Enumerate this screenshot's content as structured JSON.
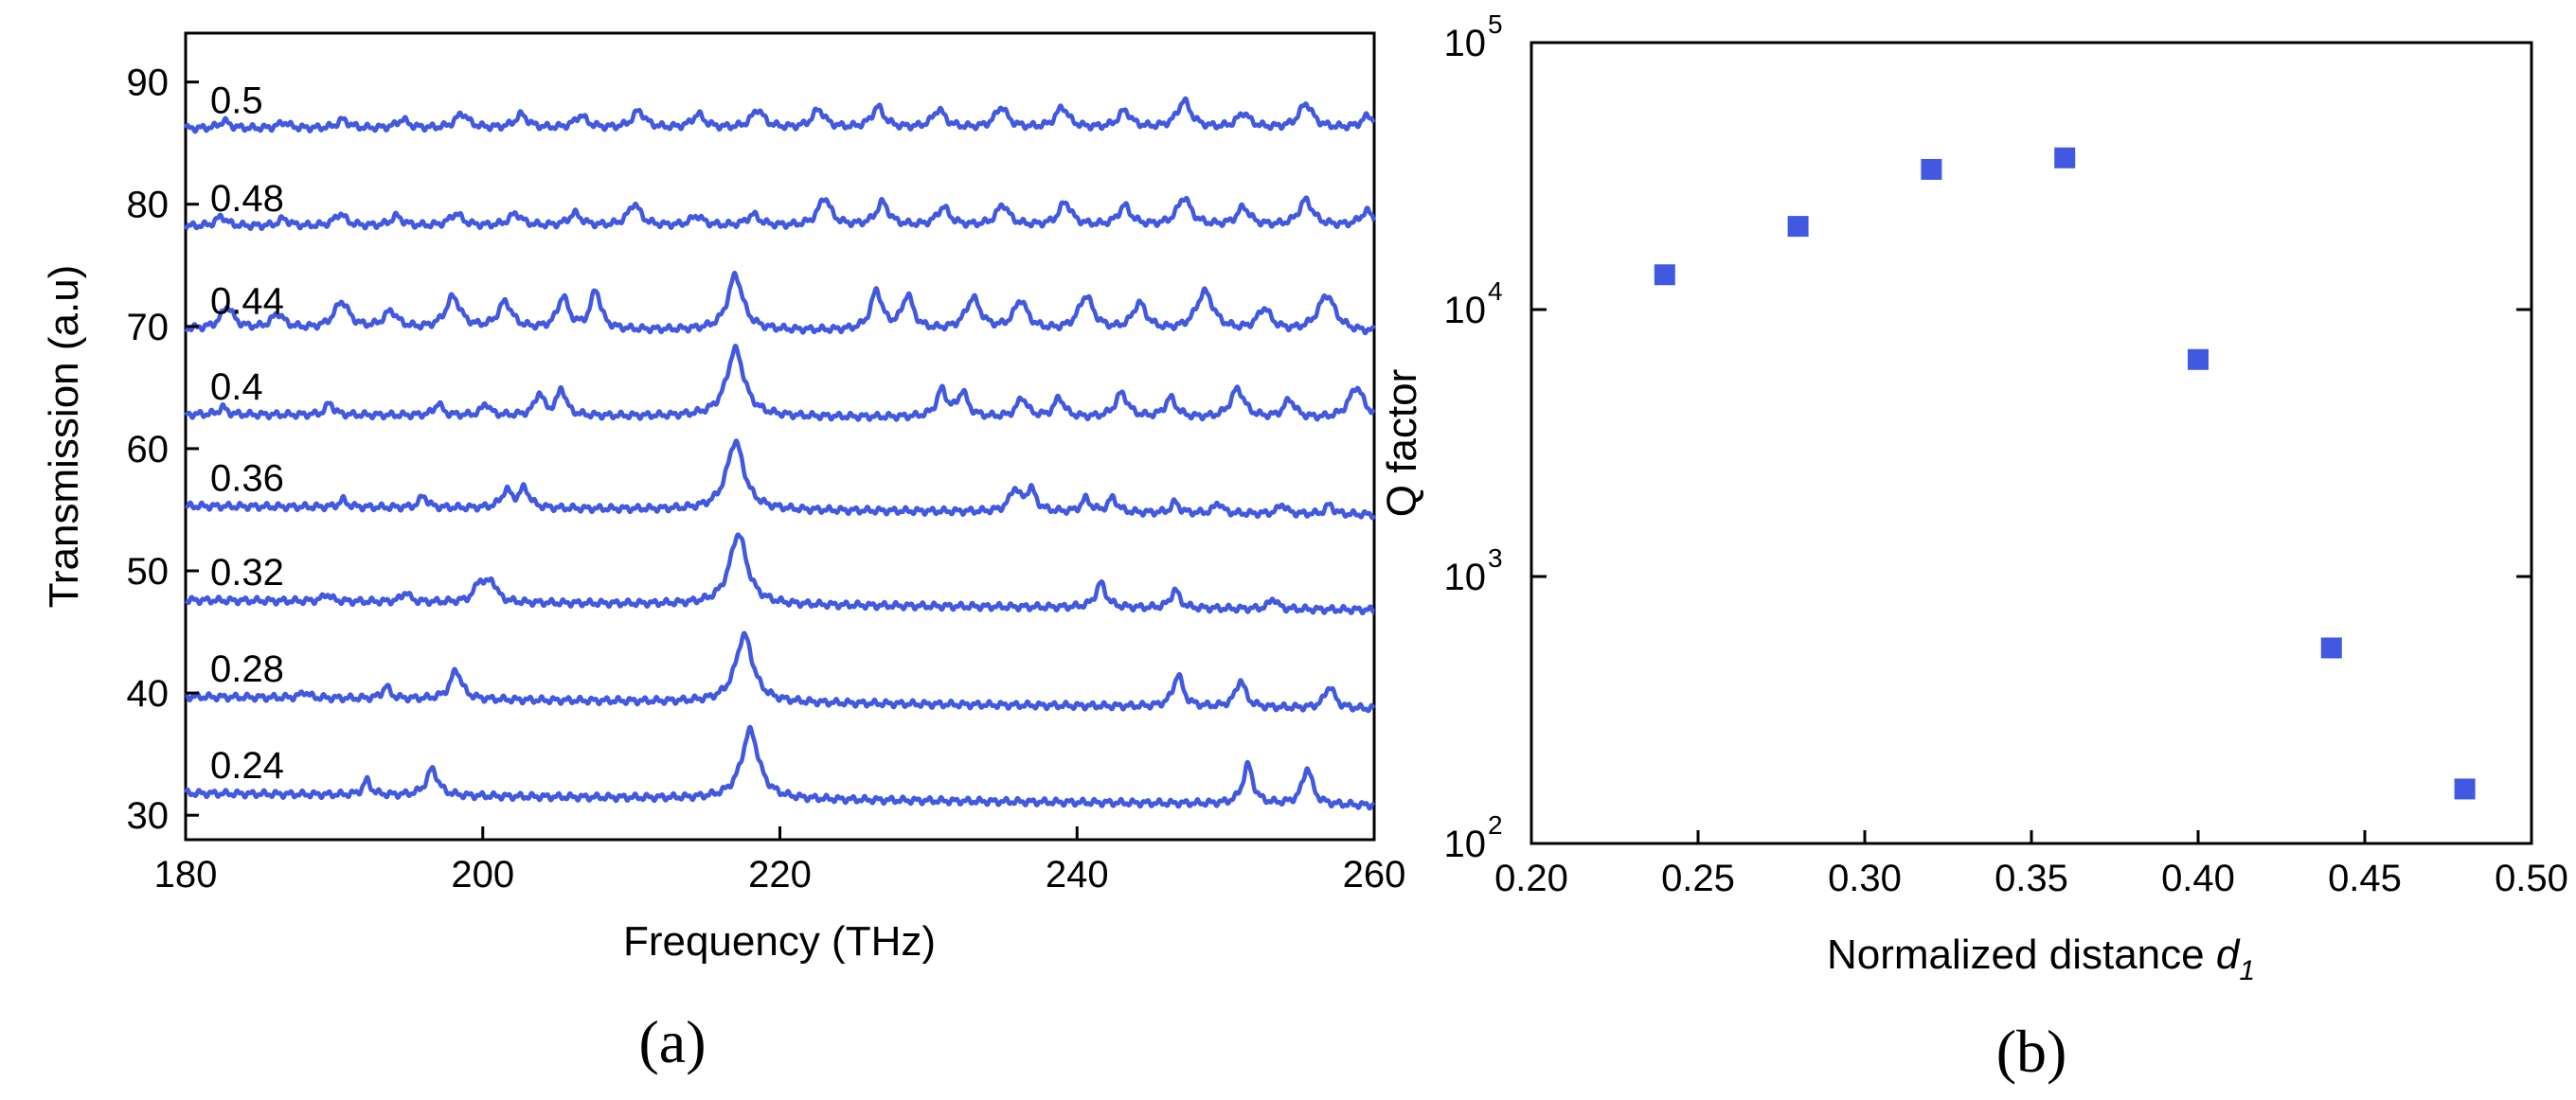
{
  "chart_data": [
    {
      "type": "line",
      "panel_label": "(a)",
      "xlabel": "Frequency (THz)",
      "ylabel": "Transmission (a.u)",
      "xlim": [
        180,
        260
      ],
      "ylim": [
        28,
        94
      ],
      "xticks": [
        180,
        200,
        220,
        240,
        260
      ],
      "yticks": [
        30,
        40,
        50,
        60,
        70,
        80,
        90
      ],
      "xtick_labels": [
        "180",
        "200",
        "220",
        "240",
        "260"
      ],
      "ytick_labels": [
        "30",
        "40",
        "50",
        "60",
        "70",
        "80",
        "90"
      ],
      "color": "#4159e0",
      "series": [
        {
          "name": "0.24",
          "baseline_start": 31.8,
          "baseline_end": 30.8,
          "peaks": [
            [
              192.2,
              1.2,
              0.3
            ],
            [
              196.6,
              2.2,
              0.45
            ],
            [
              218.0,
              5.6,
              0.7
            ],
            [
              251.5,
              3.2,
              0.4
            ],
            [
              255.5,
              3.0,
              0.4
            ]
          ]
        },
        {
          "name": "0.28",
          "baseline_start": 39.7,
          "baseline_end": 38.7,
          "peaks": [
            [
              188.0,
              0.5,
              0.3
            ],
            [
              193.5,
              1.0,
              0.3
            ],
            [
              198.2,
              2.4,
              0.45
            ],
            [
              217.6,
              5.5,
              0.7
            ],
            [
              246.8,
              2.6,
              0.4
            ],
            [
              251.0,
              2.2,
              0.4
            ],
            [
              257.0,
              1.8,
              0.4
            ]
          ]
        },
        {
          "name": "0.32",
          "baseline_start": 47.6,
          "baseline_end": 46.8,
          "peaks": [
            [
              189.5,
              0.6,
              0.3
            ],
            [
              194.8,
              0.8,
              0.3
            ],
            [
              199.8,
              1.6,
              0.4
            ],
            [
              200.6,
              1.6,
              0.4
            ],
            [
              217.2,
              5.8,
              0.7
            ],
            [
              241.6,
              2.0,
              0.4
            ],
            [
              246.6,
              1.5,
              0.35
            ],
            [
              253.2,
              0.9,
              0.3
            ]
          ]
        },
        {
          "name": "0.36",
          "baseline_start": 55.3,
          "baseline_end": 54.6,
          "peaks": [
            [
              190.6,
              0.6,
              0.3
            ],
            [
              196.0,
              1.0,
              0.3
            ],
            [
              201.6,
              1.4,
              0.4
            ],
            [
              202.8,
              1.6,
              0.4
            ],
            [
              217.0,
              5.6,
              0.7
            ],
            [
              235.8,
              1.8,
              0.4
            ],
            [
              236.9,
              1.8,
              0.4
            ],
            [
              240.6,
              1.1,
              0.35
            ],
            [
              242.4,
              1.2,
              0.35
            ],
            [
              246.6,
              0.9,
              0.3
            ],
            [
              249.5,
              0.9,
              0.3
            ],
            [
              253.8,
              0.8,
              0.3
            ],
            [
              257.0,
              0.8,
              0.3
            ]
          ]
        },
        {
          "name": "0.4",
          "baseline_start": 62.8,
          "baseline_end": 62.4,
          "peaks": [
            [
              182.5,
              0.6,
              0.3
            ],
            [
              189.7,
              1.0,
              0.3
            ],
            [
              197.0,
              1.0,
              0.3
            ],
            [
              200.2,
              1.0,
              0.3
            ],
            [
              203.8,
              1.8,
              0.35
            ],
            [
              205.3,
              2.2,
              0.35
            ],
            [
              217.0,
              5.5,
              0.7
            ],
            [
              230.9,
              2.2,
              0.4
            ],
            [
              232.3,
              2.0,
              0.4
            ],
            [
              236.3,
              1.6,
              0.4
            ],
            [
              238.8,
              1.6,
              0.4
            ],
            [
              243.0,
              2.0,
              0.5
            ],
            [
              246.3,
              1.6,
              0.45
            ],
            [
              250.8,
              2.4,
              0.55
            ],
            [
              254.3,
              1.5,
              0.45
            ],
            [
              258.8,
              2.6,
              0.6
            ]
          ]
        },
        {
          "name": "0.44",
          "baseline_start": 69.8,
          "baseline_end": 69.5,
          "peaks": [
            [
              182.8,
              1.8,
              0.5
            ],
            [
              186.2,
              1.2,
              0.5
            ],
            [
              190.5,
              2.2,
              0.6
            ],
            [
              193.8,
              1.4,
              0.55
            ],
            [
              198.0,
              2.6,
              0.6
            ],
            [
              201.5,
              2.2,
              0.55
            ],
            [
              205.4,
              2.6,
              0.45
            ],
            [
              207.6,
              3.2,
              0.4
            ],
            [
              217.0,
              4.5,
              0.6
            ],
            [
              226.5,
              3.2,
              0.45
            ],
            [
              228.6,
              2.8,
              0.45
            ],
            [
              233.0,
              2.6,
              0.6
            ],
            [
              236.2,
              2.4,
              0.55
            ],
            [
              240.6,
              2.8,
              0.6
            ],
            [
              244.2,
              2.2,
              0.55
            ],
            [
              248.6,
              3.2,
              0.7
            ],
            [
              252.6,
              1.8,
              0.55
            ],
            [
              256.8,
              3.0,
              0.7
            ]
          ]
        },
        {
          "name": "0.48",
          "baseline_start": 78.2,
          "baseline_end": 78.2,
          "peaks": [
            [
              182.4,
              0.8,
              0.4
            ],
            [
              186.6,
              0.6,
              0.4
            ],
            [
              190.4,
              1.0,
              0.45
            ],
            [
              194.2,
              0.8,
              0.45
            ],
            [
              198.2,
              1.0,
              0.5
            ],
            [
              202.2,
              1.0,
              0.5
            ],
            [
              206.2,
              1.0,
              0.5
            ],
            [
              210.2,
              1.8,
              0.5
            ],
            [
              214.4,
              0.8,
              0.5
            ],
            [
              218.2,
              0.9,
              0.5
            ],
            [
              223.0,
              2.3,
              0.5
            ],
            [
              226.9,
              1.9,
              0.5
            ],
            [
              231.0,
              1.5,
              0.5
            ],
            [
              235.0,
              1.7,
              0.5
            ],
            [
              239.2,
              1.9,
              0.5
            ],
            [
              243.2,
              1.6,
              0.5
            ],
            [
              247.2,
              2.3,
              0.55
            ],
            [
              251.2,
              1.5,
              0.5
            ],
            [
              255.4,
              2.1,
              0.55
            ],
            [
              259.5,
              1.2,
              0.5
            ]
          ]
        },
        {
          "name": "0.5",
          "baseline_start": 86.2,
          "baseline_end": 86.2,
          "peaks": [
            [
              182.6,
              0.6,
              0.4
            ],
            [
              186.6,
              0.5,
              0.4
            ],
            [
              190.6,
              0.7,
              0.45
            ],
            [
              194.6,
              0.7,
              0.45
            ],
            [
              198.6,
              1.2,
              0.5
            ],
            [
              202.6,
              1.1,
              0.5
            ],
            [
              206.6,
              1.0,
              0.5
            ],
            [
              210.5,
              1.4,
              0.5
            ],
            [
              214.5,
              1.1,
              0.5
            ],
            [
              218.5,
              1.5,
              0.5
            ],
            [
              222.6,
              1.5,
              0.5
            ],
            [
              226.6,
              1.7,
              0.5
            ],
            [
              230.7,
              1.5,
              0.5
            ],
            [
              234.9,
              1.7,
              0.5
            ],
            [
              239.0,
              1.7,
              0.5
            ],
            [
              243.2,
              1.4,
              0.5
            ],
            [
              247.2,
              2.2,
              0.55
            ],
            [
              251.2,
              1.2,
              0.5
            ],
            [
              255.4,
              2.0,
              0.55
            ],
            [
              259.6,
              1.0,
              0.5
            ]
          ]
        }
      ]
    },
    {
      "type": "scatter",
      "panel_label": "(b)",
      "xlabel": "Normalized distance ",
      "xlabel_var": "d",
      "xlabel_sub": "1",
      "ylabel": "Q factor",
      "xlim": [
        0.2,
        0.5
      ],
      "ylim": [
        100,
        100000
      ],
      "yscale": "log",
      "xticks": [
        0.2,
        0.25,
        0.3,
        0.35,
        0.4,
        0.45,
        0.5
      ],
      "xtick_labels": [
        "0.20",
        "0.25",
        "0.30",
        "0.35",
        "0.40",
        "0.45",
        "0.50"
      ],
      "yticks": [
        100,
        1000,
        10000,
        100000
      ],
      "ytick_base": "10",
      "ytick_exponents": [
        "2",
        "3",
        "4",
        "5"
      ],
      "color": "#4159e0",
      "points": [
        {
          "x": 0.24,
          "y": 13500
        },
        {
          "x": 0.28,
          "y": 20500
        },
        {
          "x": 0.32,
          "y": 33500
        },
        {
          "x": 0.36,
          "y": 37000
        },
        {
          "x": 0.4,
          "y": 6500
        },
        {
          "x": 0.44,
          "y": 540
        },
        {
          "x": 0.48,
          "y": 160
        }
      ]
    }
  ]
}
